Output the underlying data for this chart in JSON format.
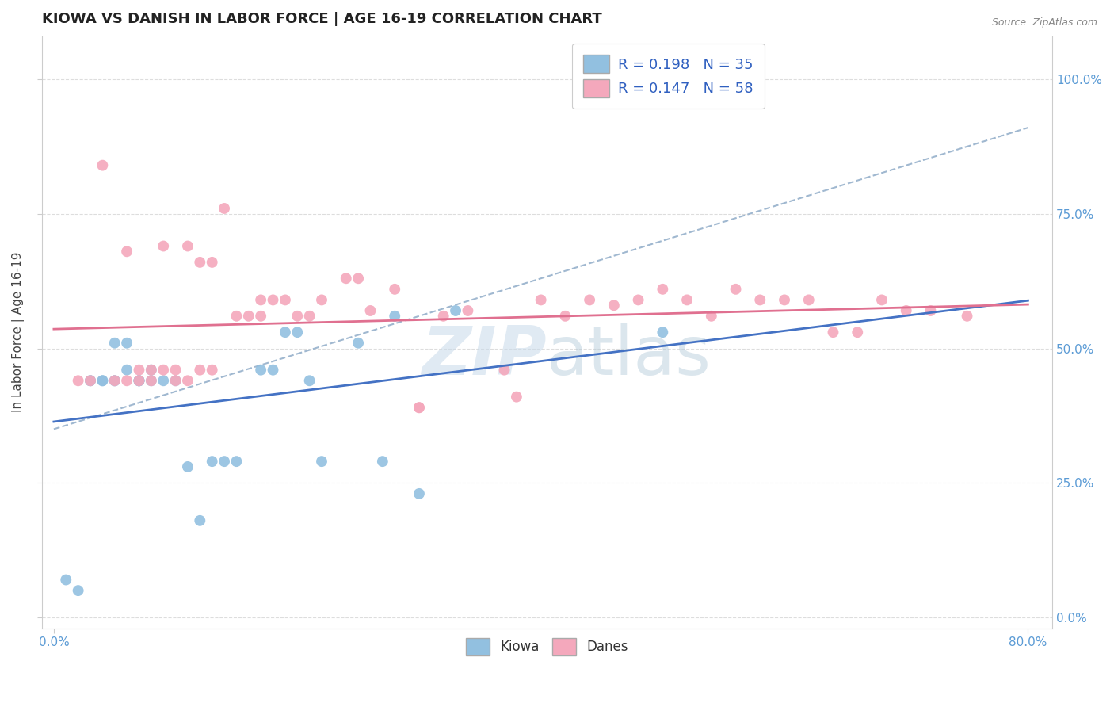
{
  "title": "KIOWA VS DANISH IN LABOR FORCE | AGE 16-19 CORRELATION CHART",
  "source": "Source: ZipAtlas.com",
  "ylabel": "In Labor Force | Age 16-19",
  "xlim": [
    -0.01,
    0.82
  ],
  "ylim": [
    -0.02,
    1.08
  ],
  "xtick_positions": [
    0.0,
    0.8
  ],
  "xticklabels": [
    "0.0%",
    "80.0%"
  ],
  "ytick_positions": [
    0.0,
    0.25,
    0.5,
    0.75,
    1.0
  ],
  "yticklabels": [
    "0.0%",
    "25.0%",
    "50.0%",
    "75.0%",
    "100.0%"
  ],
  "kiowa_color": "#92c0e0",
  "danes_color": "#f4a8bc",
  "kiowa_R": 0.198,
  "kiowa_N": 35,
  "danes_R": 0.147,
  "danes_N": 58,
  "trend_blue_color": "#4472c4",
  "trend_pink_color": "#e07090",
  "trend_dashed_color": "#a0b8d0",
  "legend_blue_label": "Kiowa",
  "legend_pink_label": "Danes",
  "kiowa_x": [
    0.01,
    0.02,
    0.03,
    0.03,
    0.04,
    0.04,
    0.05,
    0.05,
    0.05,
    0.06,
    0.06,
    0.07,
    0.07,
    0.07,
    0.08,
    0.08,
    0.09,
    0.1,
    0.11,
    0.12,
    0.13,
    0.14,
    0.15,
    0.17,
    0.18,
    0.19,
    0.2,
    0.21,
    0.22,
    0.25,
    0.27,
    0.28,
    0.3,
    0.33,
    0.5
  ],
  "kiowa_y": [
    0.07,
    0.05,
    0.44,
    0.44,
    0.44,
    0.44,
    0.44,
    0.44,
    0.51,
    0.46,
    0.51,
    0.44,
    0.44,
    0.44,
    0.44,
    0.46,
    0.44,
    0.44,
    0.28,
    0.18,
    0.29,
    0.29,
    0.29,
    0.46,
    0.46,
    0.53,
    0.53,
    0.44,
    0.29,
    0.51,
    0.29,
    0.56,
    0.23,
    0.57,
    0.53
  ],
  "danes_x": [
    0.02,
    0.03,
    0.04,
    0.05,
    0.06,
    0.06,
    0.07,
    0.07,
    0.08,
    0.08,
    0.09,
    0.09,
    0.1,
    0.1,
    0.11,
    0.11,
    0.12,
    0.12,
    0.13,
    0.13,
    0.14,
    0.15,
    0.16,
    0.17,
    0.17,
    0.18,
    0.19,
    0.2,
    0.21,
    0.22,
    0.24,
    0.25,
    0.26,
    0.28,
    0.3,
    0.3,
    0.32,
    0.34,
    0.37,
    0.38,
    0.4,
    0.42,
    0.44,
    0.46,
    0.48,
    0.5,
    0.52,
    0.54,
    0.56,
    0.58,
    0.6,
    0.62,
    0.64,
    0.66,
    0.68,
    0.7,
    0.72,
    0.75
  ],
  "danes_y": [
    0.44,
    0.44,
    0.84,
    0.44,
    0.44,
    0.68,
    0.44,
    0.46,
    0.44,
    0.46,
    0.46,
    0.69,
    0.44,
    0.46,
    0.44,
    0.69,
    0.46,
    0.66,
    0.46,
    0.66,
    0.76,
    0.56,
    0.56,
    0.56,
    0.59,
    0.59,
    0.59,
    0.56,
    0.56,
    0.59,
    0.63,
    0.63,
    0.57,
    0.61,
    0.39,
    0.39,
    0.56,
    0.57,
    0.46,
    0.41,
    0.59,
    0.56,
    0.59,
    0.58,
    0.59,
    0.61,
    0.59,
    0.56,
    0.61,
    0.59,
    0.59,
    0.59,
    0.53,
    0.53,
    0.59,
    0.57,
    0.57,
    0.56
  ]
}
